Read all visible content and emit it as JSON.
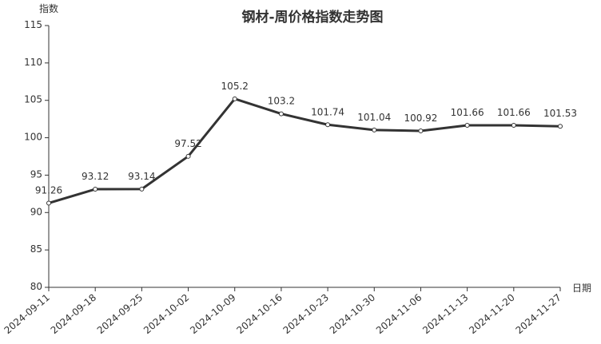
{
  "chart_data": {
    "type": "line",
    "title": "钢材-周价格指数走势图",
    "xlabel": "日期",
    "ylabel": "指数",
    "ylim": [
      80,
      115
    ],
    "yticks": [
      80,
      85,
      90,
      95,
      100,
      105,
      110,
      115
    ],
    "grid": false,
    "categories": [
      "2024-09-11",
      "2024-09-18",
      "2024-09-25",
      "2024-10-02",
      "2024-10-09",
      "2024-10-16",
      "2024-10-23",
      "2024-10-30",
      "2024-11-06",
      "2024-11-13",
      "2024-11-20",
      "2024-11-27"
    ],
    "values": [
      91.26,
      93.12,
      93.14,
      97.52,
      105.2,
      103.2,
      101.74,
      101.04,
      100.92,
      101.66,
      101.66,
      101.53
    ],
    "line_color": "#333333"
  }
}
